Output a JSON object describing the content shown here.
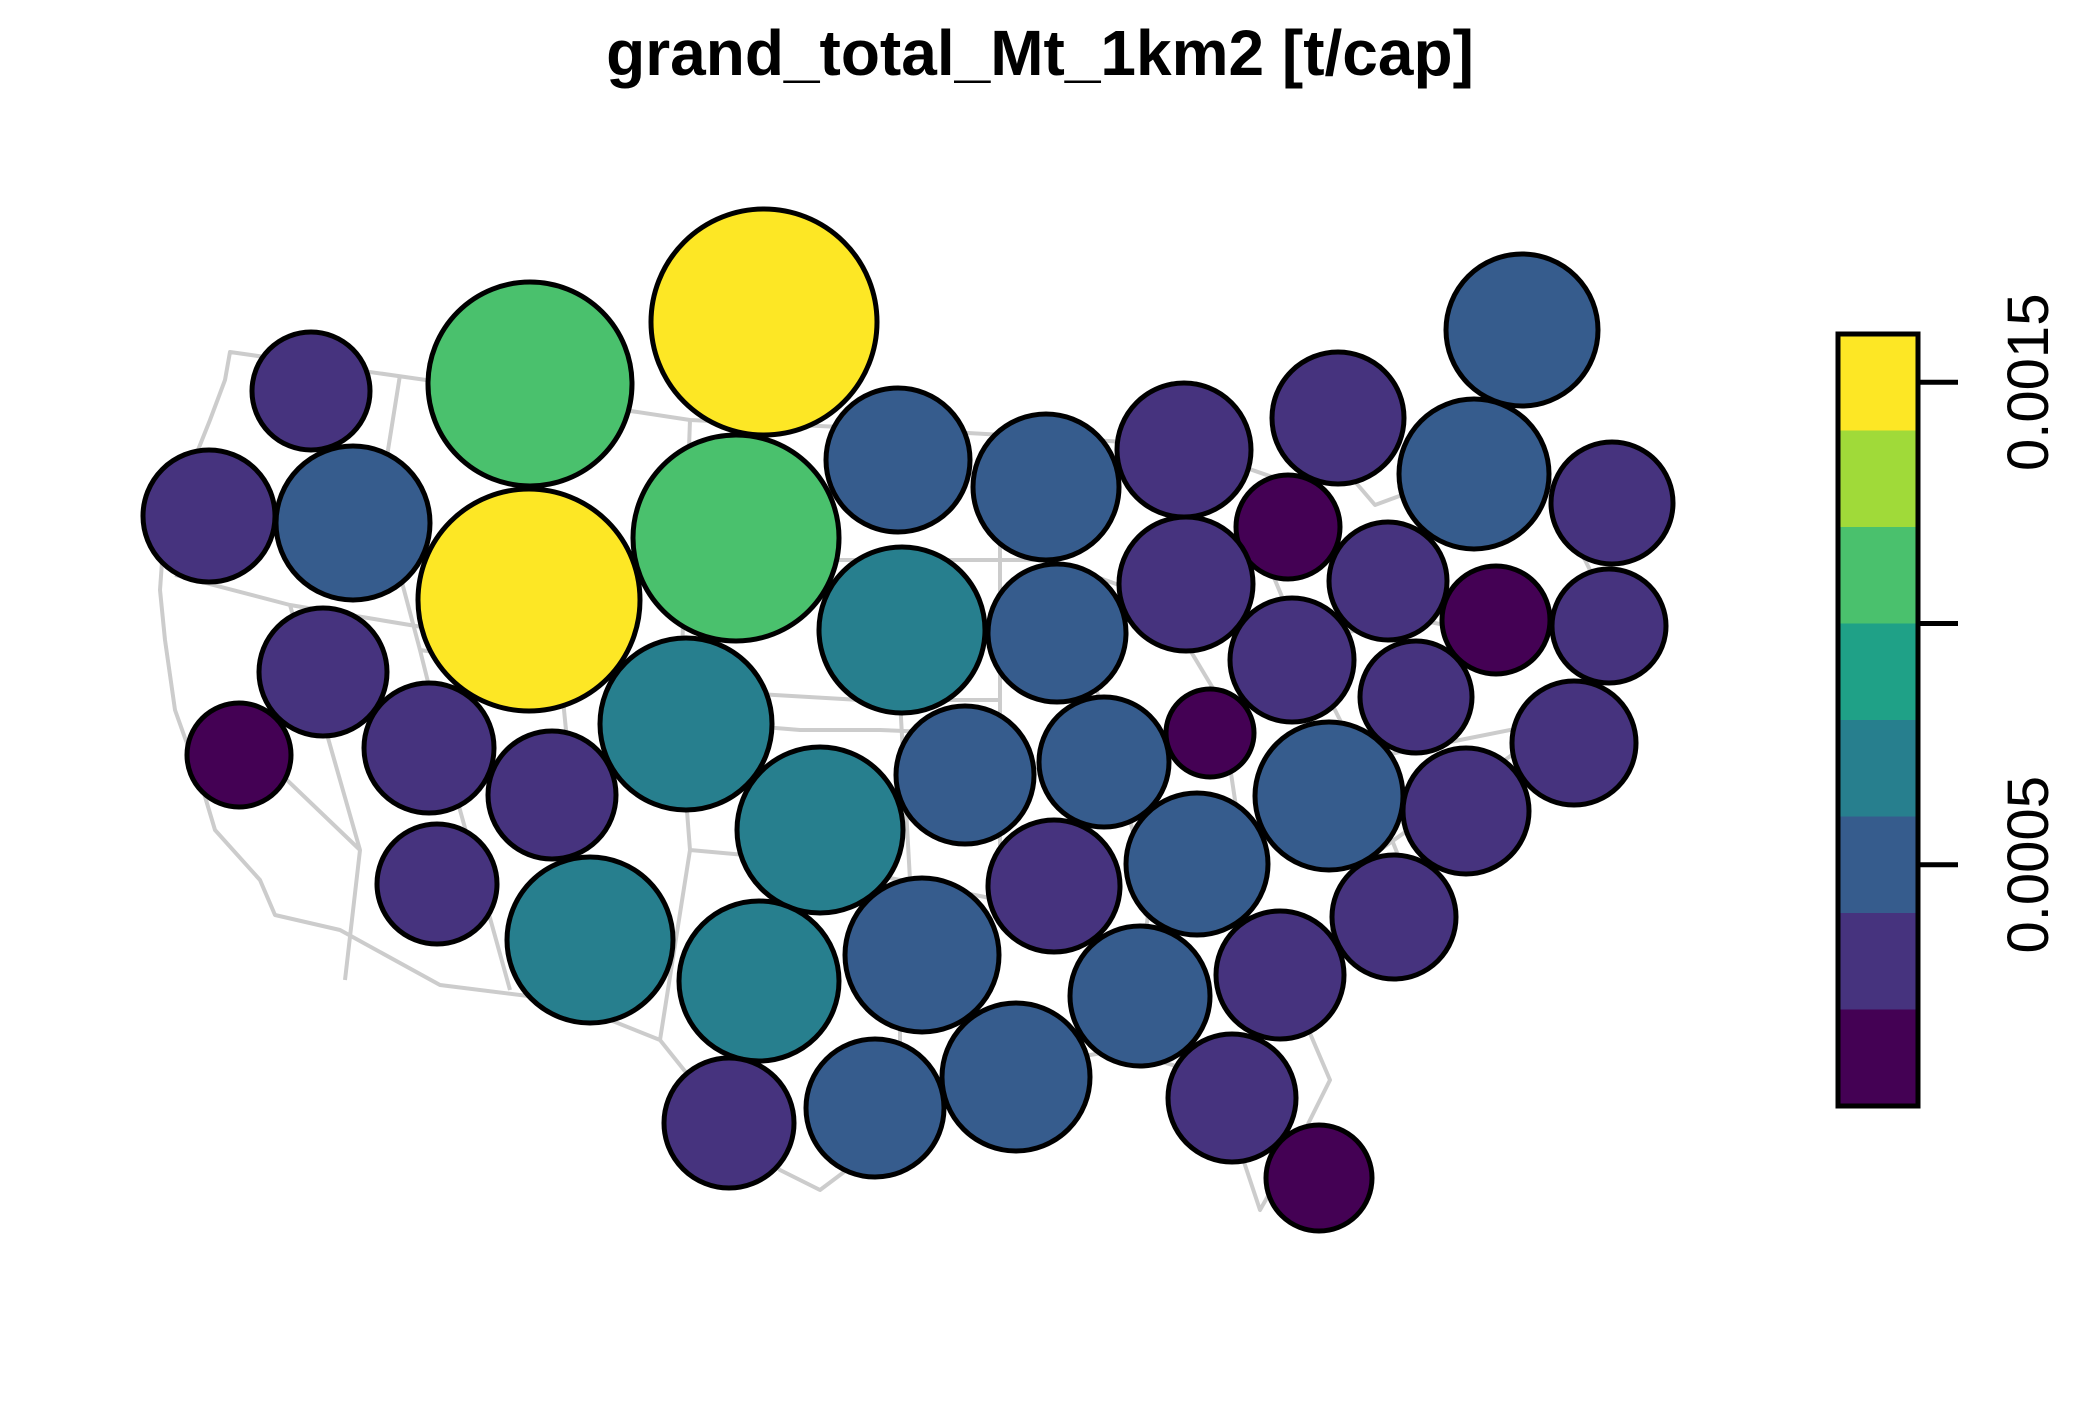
{
  "chart_data": {
    "type": "cartogram",
    "title": "grand_total_Mt_1km2 [t/cap]",
    "legend": {
      "type": "colorbar",
      "placement": "right",
      "range": [
        0.0,
        0.0016
      ],
      "ticks": [
        {
          "value": 0.0005,
          "label": "0.0005"
        },
        {
          "value": 0.001,
          "label": ""
        },
        {
          "value": 0.0015,
          "label": "0.0015"
        }
      ],
      "bins": [
        {
          "from": 0.0,
          "to": 0.0002,
          "color": "#440154"
        },
        {
          "from": 0.0002,
          "to": 0.0004,
          "color": "#46337E"
        },
        {
          "from": 0.0004,
          "to": 0.0006,
          "color": "#365C8D"
        },
        {
          "from": 0.0006,
          "to": 0.0008,
          "color": "#277F8E"
        },
        {
          "from": 0.0008,
          "to": 0.001,
          "color": "#1FA187"
        },
        {
          "from": 0.001,
          "to": 0.0012,
          "color": "#4AC16D"
        },
        {
          "from": 0.0012,
          "to": 0.0014,
          "color": "#A0DA39"
        },
        {
          "from": 0.0014,
          "to": 0.0016,
          "color": "#FDE725"
        }
      ]
    }
  }
}
